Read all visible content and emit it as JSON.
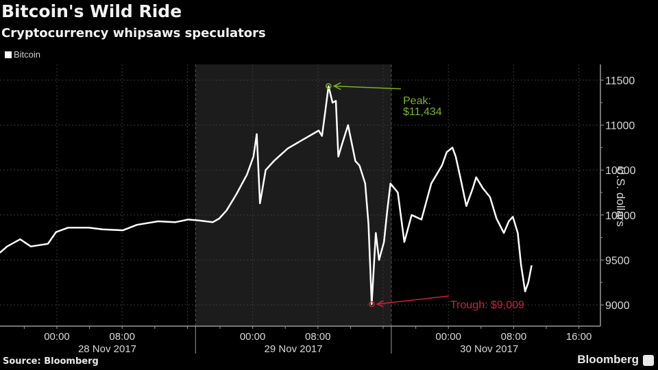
{
  "header": {
    "title": "Bitcoin's Wild Ride",
    "subtitle": "Cryptocurrency whipsaws speculators"
  },
  "legend": {
    "items": [
      {
        "label": "Bitcoin",
        "color": "#ffffff"
      }
    ]
  },
  "footer": {
    "source": "Source: Bloomberg",
    "brand": "Bloomberg"
  },
  "annotations": {
    "peak": {
      "label": "Peak:",
      "value": "$11,434",
      "color": "#7fb21e"
    },
    "trough": {
      "label": "Trough: $9,009",
      "color": "#d0203a"
    }
  },
  "axes": {
    "ylabel": "U.S. dollars",
    "yticks": [
      "11500",
      "11000",
      "10500",
      "10000",
      "9500",
      "9000"
    ],
    "xticks": [
      "00:00",
      "08:00",
      "00:00",
      "08:00",
      "00:00",
      "08:00",
      "16:00"
    ],
    "xdays": [
      "28 Nov 2017",
      "29 Nov 2017",
      "30 Nov 2017"
    ]
  },
  "chart_data": {
    "type": "line",
    "title": "Bitcoin's Wild Ride",
    "subtitle": "Cryptocurrency whipsaws speculators",
    "xlabel": "",
    "ylabel": "U.S. dollars",
    "ylim": [
      8750,
      11700
    ],
    "y_ticks": [
      9000,
      9500,
      10000,
      10500,
      11000,
      11500
    ],
    "x_tick_labels": [
      "00:00 28 Nov 2017",
      "08:00 28 Nov 2017",
      "00:00 29 Nov 2017",
      "08:00 29 Nov 2017",
      "00:00 30 Nov 2017",
      "08:00 30 Nov 2017",
      "16:00 30 Nov 2017"
    ],
    "grid": true,
    "legend_position": "top-left",
    "highlighted_region": {
      "label": "29 Nov 2017 (shaded)",
      "x_start_hours": 17,
      "x_end_hours": 41
    },
    "series": [
      {
        "name": "Bitcoin",
        "x_hours_from_28nov_0000": [
          -7,
          -6.1,
          -4.5,
          -3.2,
          -1.1,
          -0.1,
          1.4,
          3.9,
          5.6,
          8.1,
          9.8,
          12.4,
          14.5,
          16.1,
          17.4,
          19.1,
          19.9,
          20.8,
          22.0,
          23.3,
          24.1,
          24.5,
          24.9,
          25.6,
          26.6,
          28.3,
          30.0,
          32.1,
          32.5,
          32.9,
          33.3,
          33.8,
          34.2,
          34.5,
          35.0,
          35.7,
          36.6,
          37.1,
          37.8,
          38.2,
          38.6,
          39.1,
          39.5,
          40.1,
          40.5,
          40.9,
          41.8,
          42.6,
          43.5,
          44.7,
          45.9,
          47.2,
          47.8,
          48.5,
          48.9,
          49.5,
          50.2,
          51.0,
          51.4,
          52.2,
          53.1,
          53.9,
          54.8,
          55.4,
          55.9,
          56.5,
          56.9,
          57.4,
          57.8,
          58.2
        ],
        "values": [
          9580,
          9650,
          9730,
          9650,
          9680,
          9810,
          9860,
          9860,
          9840,
          9830,
          9890,
          9930,
          9920,
          9950,
          9940,
          9920,
          9960,
          10050,
          10230,
          10450,
          10650,
          10900,
          10130,
          10500,
          10600,
          10740,
          10830,
          10940,
          10880,
          11150,
          11434,
          11250,
          11270,
          10650,
          10800,
          11000,
          10600,
          10550,
          10350,
          9900,
          9009,
          9800,
          9500,
          9700,
          10050,
          10350,
          10250,
          9700,
          10000,
          9950,
          10350,
          10550,
          10700,
          10750,
          10650,
          10400,
          10100,
          10300,
          10420,
          10300,
          10200,
          9960,
          9800,
          9930,
          9980,
          9800,
          9450,
          9150,
          9250,
          9440
        ]
      }
    ],
    "annotations": [
      {
        "text": "Peak: $11,434",
        "value": 11434,
        "x_hours": 33.3,
        "color": "#7fb21e"
      },
      {
        "text": "Trough: $9,009",
        "value": 9009,
        "x_hours": 38.6,
        "color": "#d0203a"
      }
    ],
    "source": "Source: Bloomberg"
  }
}
